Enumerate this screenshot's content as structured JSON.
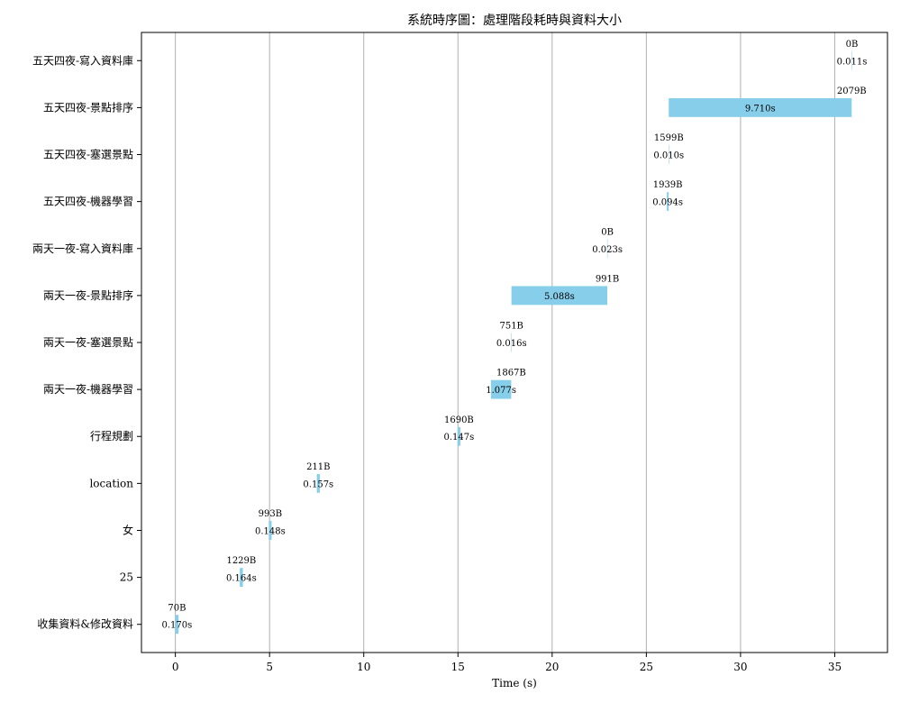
{
  "chart_data": {
    "type": "bar",
    "orientation": "horizontal",
    "title": "系統時序圖：處理階段耗時與資料大小",
    "xlabel": "Time (s)",
    "ylabel": "",
    "xlim": [
      -1.8,
      37.8
    ],
    "xticks": [
      0,
      5,
      10,
      15,
      20,
      25,
      30,
      35
    ],
    "grid": "x",
    "bar_color": "#87ceeb",
    "tasks": [
      {
        "label": "收集資料&修改資料",
        "start": 0.0,
        "duration": 0.17,
        "duration_label": "0.170s",
        "size_label": "70B"
      },
      {
        "label": "25",
        "start": 3.42,
        "duration": 0.164,
        "duration_label": "0.164s",
        "size_label": "1229B"
      },
      {
        "label": "女",
        "start": 4.96,
        "duration": 0.148,
        "duration_label": "0.148s",
        "size_label": "993B"
      },
      {
        "label": "location",
        "start": 7.51,
        "duration": 0.157,
        "duration_label": "0.157s",
        "size_label": "211B"
      },
      {
        "label": "行程規劃",
        "start": 14.98,
        "duration": 0.147,
        "duration_label": "0.147s",
        "size_label": "1690B"
      },
      {
        "label": "兩天一夜-機器學習",
        "start": 16.75,
        "duration": 1.077,
        "duration_label": "1.077s",
        "size_label": "1867B"
      },
      {
        "label": "兩天一夜-塞選景點",
        "start": 17.83,
        "duration": 0.016,
        "duration_label": "0.016s",
        "size_label": "751B"
      },
      {
        "label": "兩天一夜-景點排序",
        "start": 17.84,
        "duration": 5.088,
        "duration_label": "5.088s",
        "size_label": "991B"
      },
      {
        "label": "兩天一夜-寫入資料庫",
        "start": 22.92,
        "duration": 0.023,
        "duration_label": "0.023s",
        "size_label": "0B"
      },
      {
        "label": "五天四夜-機器學習",
        "start": 26.09,
        "duration": 0.094,
        "duration_label": "0.094s",
        "size_label": "1939B"
      },
      {
        "label": "五天四夜-塞選景點",
        "start": 26.18,
        "duration": 0.01,
        "duration_label": "0.010s",
        "size_label": "1599B"
      },
      {
        "label": "五天四夜-景點排序",
        "start": 26.19,
        "duration": 9.71,
        "duration_label": "9.710s",
        "size_label": "2079B"
      },
      {
        "label": "五天四夜-寫入資料庫",
        "start": 35.9,
        "duration": 0.011,
        "duration_label": "0.011s",
        "size_label": "0B"
      }
    ]
  }
}
